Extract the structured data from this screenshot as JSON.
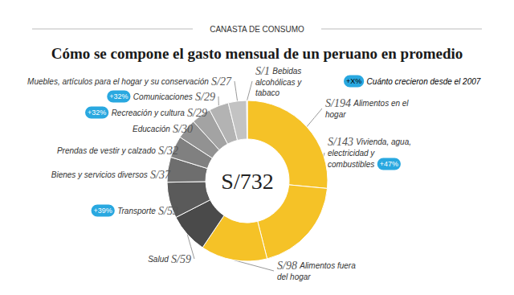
{
  "chart_data": {
    "type": "donut",
    "header": "CANASTA DE CONSUMO",
    "title": "Cómo se compone el gasto mensual de un peruano en promedio",
    "categories": [
      "Alimentos en el hogar",
      "Vivienda, agua, electricidad y combustibles",
      "Alimentos fuera del hogar",
      "Salud",
      "Transporte",
      "Bienes y servicios diversos",
      "Prendas de vestir y calzado",
      "Educación",
      "Recreación y cultura",
      "Comunicaciones",
      "Muebles, artículos para el hogar y su conservación",
      "Bebidas alcohólicas y tabaco"
    ],
    "values": [
      194,
      143,
      98,
      59,
      53,
      37,
      32,
      30,
      29,
      29,
      27,
      1
    ],
    "value_labels": [
      "S/194",
      "S/143",
      "S/98",
      "S/59",
      "S/53",
      "S/37",
      "S/32",
      "S/30",
      "S/29",
      "S/29",
      "S/27",
      "S/1"
    ],
    "colors": [
      "#f5c227",
      "#f5c227",
      "#f5c227",
      "#4a4a4a",
      "#5a5a5a",
      "#6e6e6e",
      "#808080",
      "#929292",
      "#a3a3a3",
      "#b3b3b3",
      "#c3c3c3",
      "#d6d6d6"
    ],
    "growth": [
      null,
      47,
      null,
      null,
      39,
      null,
      null,
      null,
      32,
      32,
      null,
      null
    ],
    "growth_labels": [
      null,
      "+47%",
      null,
      null,
      "+39%",
      null,
      null,
      null,
      "+32%",
      "+32%",
      null,
      null
    ],
    "growth_legend": {
      "badge": "+X%",
      "text": "Cuánto crecieron desde el 2007"
    },
    "total": 732,
    "total_label": "S/732",
    "data_labels": true
  }
}
